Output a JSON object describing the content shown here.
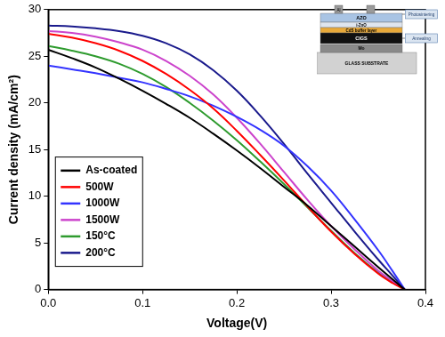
{
  "chart_data": {
    "type": "line",
    "x_label": "Voltage(V)",
    "y_label": "Current density (mA/cm²)",
    "x": [
      0,
      0.025,
      0.05,
      0.075,
      0.1,
      0.125,
      0.15,
      0.175,
      0.2,
      0.225,
      0.25,
      0.275,
      0.3,
      0.325,
      0.35,
      0.365,
      0.378
    ],
    "series": [
      {
        "name": "As-coated",
        "color": "#000000",
        "values": [
          25.7,
          24.8,
          23.8,
          22.6,
          21.3,
          19.9,
          18.4,
          16.7,
          14.9,
          13.0,
          11.0,
          9.0,
          6.8,
          4.6,
          2.4,
          1.1,
          0
        ]
      },
      {
        "name": "500W",
        "color": "#ff0000",
        "values": [
          27.4,
          27.0,
          26.4,
          25.6,
          24.5,
          23.1,
          21.4,
          19.4,
          17.0,
          14.4,
          11.7,
          8.9,
          6.2,
          3.8,
          1.7,
          0.7,
          0
        ]
      },
      {
        "name": "1000W",
        "color": "#3333ff",
        "values": [
          24.0,
          23.6,
          23.2,
          22.7,
          22.2,
          21.5,
          20.7,
          19.7,
          18.5,
          17.1,
          15.4,
          13.2,
          10.6,
          7.5,
          4.2,
          2.0,
          0
        ]
      },
      {
        "name": "1500W",
        "color": "#cc44cc",
        "values": [
          27.7,
          27.5,
          27.1,
          26.5,
          25.7,
          24.5,
          22.9,
          20.9,
          18.4,
          15.6,
          12.6,
          9.6,
          6.8,
          4.3,
          2.0,
          0.9,
          0
        ]
      },
      {
        "name": "150°C",
        "color": "#2e9b2e",
        "values": [
          26.1,
          25.6,
          25.0,
          24.2,
          23.1,
          21.7,
          20.0,
          18.1,
          16.0,
          13.7,
          11.3,
          8.8,
          6.3,
          3.9,
          1.8,
          0.8,
          0
        ]
      },
      {
        "name": "200°C",
        "color": "#1a1a8c",
        "values": [
          28.3,
          28.2,
          28.0,
          27.7,
          27.2,
          26.4,
          25.2,
          23.5,
          21.3,
          18.6,
          15.6,
          12.4,
          9.3,
          6.2,
          3.2,
          1.5,
          0
        ]
      }
    ],
    "xlim": [
      0,
      0.4
    ],
    "xticks": [
      {
        "value": 0,
        "label": "0.0"
      },
      {
        "value": 0.1,
        "label": "0.1"
      },
      {
        "value": 0.2,
        "label": "0.2"
      },
      {
        "value": 0.3,
        "label": "0.3"
      },
      {
        "value": 0.4,
        "label": "0.4"
      }
    ],
    "ylim": [
      0,
      30
    ],
    "yticks": [
      0,
      5,
      10,
      15,
      20,
      25,
      30
    ],
    "grid": false,
    "legend": "lower left",
    "annotations": {
      "electrode": "Al",
      "layers": [
        "AZO",
        "i-ZnO",
        "CdS buffer layer",
        "CIGS",
        "Mo",
        "GLASS SUBSTRATE"
      ],
      "callouts": [
        "Photosintering",
        "Annealing"
      ]
    }
  }
}
